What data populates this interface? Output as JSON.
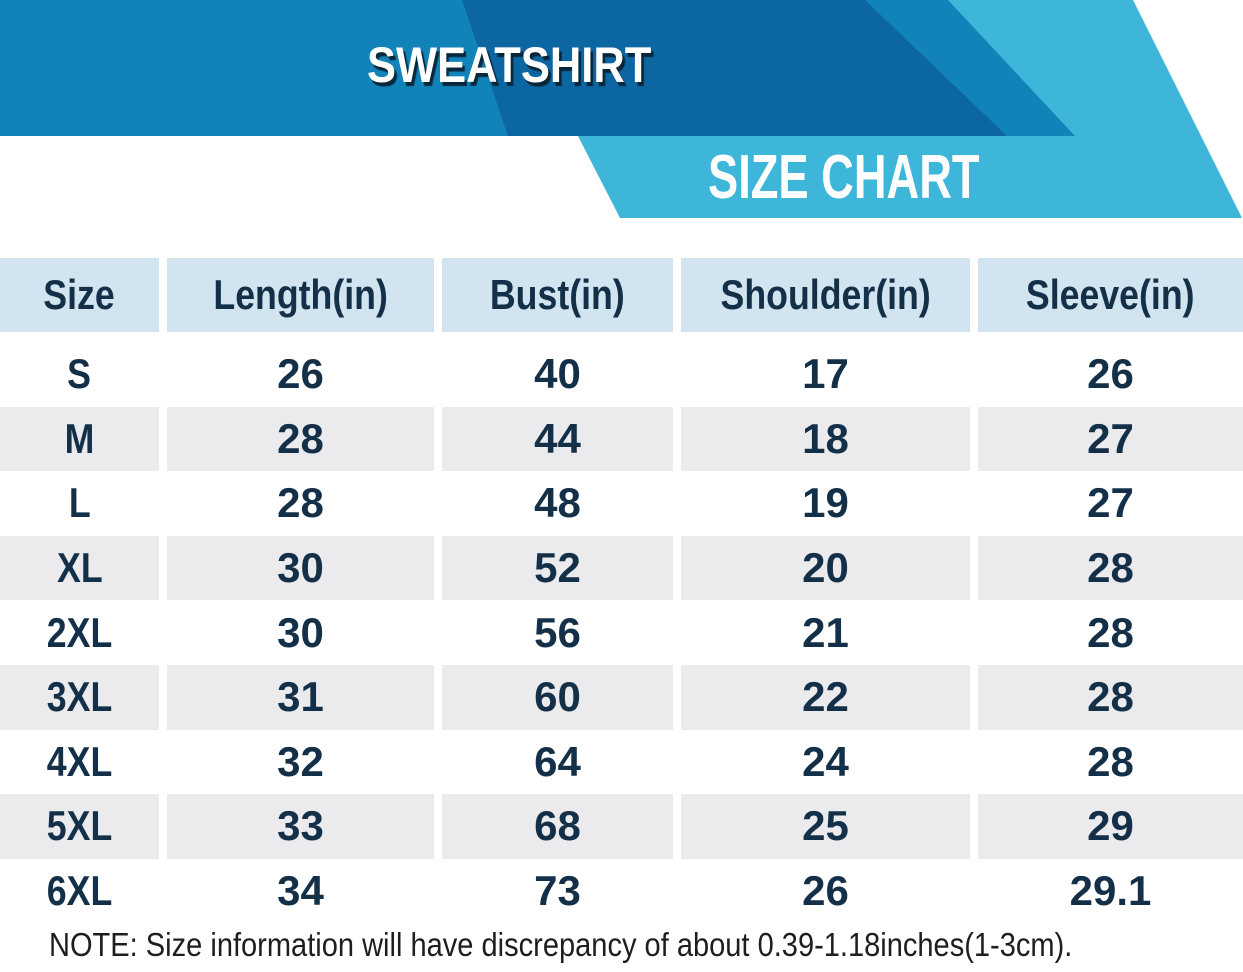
{
  "banner": {
    "product_title": "SWEATSHIRT",
    "chart_title": "SIZE CHART",
    "colors": {
      "medium_blue": "#1283b8",
      "dark_blue": "#0c66a1",
      "cyan": "#3db6d9",
      "title_text": "#ffffff"
    }
  },
  "table": {
    "columns": [
      "Size",
      "Length(in)",
      "Bust(in)",
      "Shoulder(in)",
      "Sleeve(in)"
    ],
    "rows": [
      {
        "size": "S",
        "length": "26",
        "bust": "40",
        "shoulder": "17",
        "sleeve": "26"
      },
      {
        "size": "M",
        "length": "28",
        "bust": "44",
        "shoulder": "18",
        "sleeve": "27"
      },
      {
        "size": "L",
        "length": "28",
        "bust": "48",
        "shoulder": "19",
        "sleeve": "27"
      },
      {
        "size": "XL",
        "length": "30",
        "bust": "52",
        "shoulder": "20",
        "sleeve": "28"
      },
      {
        "size": "2XL",
        "length": "30",
        "bust": "56",
        "shoulder": "21",
        "sleeve": "28"
      },
      {
        "size": "3XL",
        "length": "31",
        "bust": "60",
        "shoulder": "22",
        "sleeve": "28"
      },
      {
        "size": "4XL",
        "length": "32",
        "bust": "64",
        "shoulder": "24",
        "sleeve": "28"
      },
      {
        "size": "5XL",
        "length": "33",
        "bust": "68",
        "shoulder": "25",
        "sleeve": "29"
      },
      {
        "size": "6XL",
        "length": "34",
        "bust": "73",
        "shoulder": "26",
        "sleeve": "29.1"
      }
    ],
    "colors": {
      "header_bg": "#d2e4f0",
      "alt_row_bg": "#ebebee",
      "text": "#143049"
    }
  },
  "note": "NOTE: Size information will have discrepancy of about 0.39-1.18inches(1-3cm).",
  "chart_data": {
    "type": "table",
    "title": "SWEATSHIRT SIZE CHART",
    "categories": [
      "S",
      "M",
      "L",
      "XL",
      "2XL",
      "3XL",
      "4XL",
      "5XL",
      "6XL"
    ],
    "series": [
      {
        "name": "Length(in)",
        "values": [
          26,
          28,
          28,
          30,
          30,
          31,
          32,
          33,
          34
        ]
      },
      {
        "name": "Bust(in)",
        "values": [
          40,
          44,
          48,
          52,
          56,
          60,
          64,
          68,
          73
        ]
      },
      {
        "name": "Shoulder(in)",
        "values": [
          17,
          18,
          19,
          20,
          21,
          22,
          24,
          25,
          26
        ]
      },
      {
        "name": "Sleeve(in)",
        "values": [
          26,
          27,
          27,
          28,
          28,
          28,
          28,
          29,
          29.1
        ]
      }
    ],
    "note": "NOTE: Size information will have discrepancy of about 0.39-1.18inches(1-3cm)."
  }
}
